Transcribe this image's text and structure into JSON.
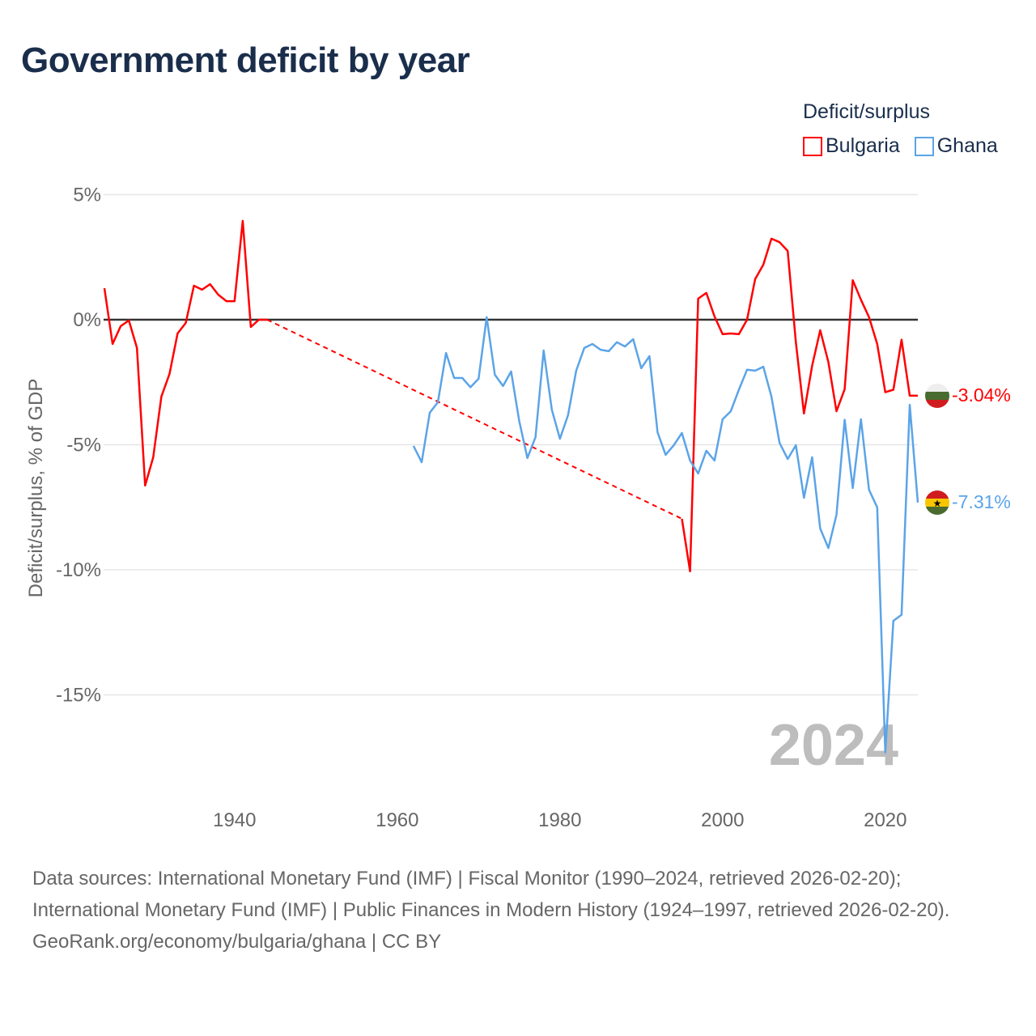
{
  "title": "Government deficit by year",
  "legend": {
    "title": "Deficit/surplus",
    "items": [
      {
        "name": "Bulgaria",
        "color": "#ff0000"
      },
      {
        "name": "Ghana",
        "color": "#5ba4e8"
      }
    ]
  },
  "year_watermark": "2024",
  "end_labels": {
    "bulgaria": "-3.04%",
    "ghana": "-7.31%"
  },
  "footer": {
    "sources": "Data sources: International Monetary Fund (IMF) | Fiscal Monitor (1990–2024, retrieved 2026-02-20); International Monetary Fund (IMF) | Public Finances in Modern History (1924–1997, retrieved 2026-02-20).",
    "credit": "GeoRank.org/economy/bulgaria/ghana | CC BY"
  },
  "chart_data": {
    "type": "line",
    "title": "Government deficit by year",
    "xlabel": "",
    "ylabel": "Deficit/surplus, % of GDP",
    "xlim": [
      1924,
      2024
    ],
    "ylim": [
      -19,
      5
    ],
    "xticks": [
      1940,
      1960,
      1980,
      2000,
      2020
    ],
    "yticks": [
      {
        "v": 5,
        "label": "5%"
      },
      {
        "v": 0,
        "label": "0%"
      },
      {
        "v": -5,
        "label": "-5%"
      },
      {
        "v": -10,
        "label": "-10%"
      },
      {
        "v": -15,
        "label": "-15%"
      }
    ],
    "grid": true,
    "legend_position": "top-right",
    "series": [
      {
        "name": "Bulgaria",
        "color": "#ff0000",
        "points": [
          [
            1924,
            1.26
          ],
          [
            1925,
            -0.97
          ],
          [
            1926,
            -0.26
          ],
          [
            1927,
            -0.03
          ],
          [
            1928,
            -1.13
          ],
          [
            1929,
            -6.63
          ],
          [
            1930,
            -5.5
          ],
          [
            1931,
            -3.07
          ],
          [
            1932,
            -2.17
          ],
          [
            1933,
            -0.55
          ],
          [
            1934,
            -0.13
          ],
          [
            1935,
            1.36
          ],
          [
            1936,
            1.2
          ],
          [
            1937,
            1.42
          ],
          [
            1938,
            1.0
          ],
          [
            1939,
            0.74
          ],
          [
            1940,
            0.74
          ],
          [
            1941,
            3.95
          ],
          [
            1942,
            -0.29
          ],
          [
            1943,
            0.0
          ],
          [
            1944,
            0.0
          ],
          [
            1995,
            -7.96
          ],
          [
            1996,
            -10.06
          ],
          [
            1997,
            0.84
          ],
          [
            1998,
            1.07
          ],
          [
            1999,
            0.13
          ],
          [
            2000,
            -0.58
          ],
          [
            2001,
            -0.55
          ],
          [
            2002,
            -0.58
          ],
          [
            2003,
            0.0
          ],
          [
            2004,
            1.62
          ],
          [
            2005,
            2.2
          ],
          [
            2006,
            3.24
          ],
          [
            2007,
            3.1
          ],
          [
            2008,
            2.75
          ],
          [
            2009,
            -0.9
          ],
          [
            2010,
            -3.75
          ],
          [
            2011,
            -1.84
          ],
          [
            2012,
            -0.42
          ],
          [
            2013,
            -1.7
          ],
          [
            2014,
            -3.66
          ],
          [
            2015,
            -2.78
          ],
          [
            2016,
            1.58
          ],
          [
            2017,
            0.8
          ],
          [
            2018,
            0.1
          ],
          [
            2019,
            -0.97
          ],
          [
            2020,
            -2.9
          ],
          [
            2021,
            -2.8
          ],
          [
            2022,
            -0.8
          ],
          [
            2023,
            -3.04
          ],
          [
            2024,
            -3.04
          ]
        ]
      },
      {
        "name": "Ghana",
        "color": "#5ba4e8",
        "points": [
          [
            1962,
            -5.05
          ],
          [
            1963,
            -5.7
          ],
          [
            1964,
            -3.72
          ],
          [
            1965,
            -3.3
          ],
          [
            1966,
            -1.33
          ],
          [
            1967,
            -2.33
          ],
          [
            1968,
            -2.33
          ],
          [
            1969,
            -2.7
          ],
          [
            1970,
            -2.36
          ],
          [
            1971,
            0.1
          ],
          [
            1972,
            -2.2
          ],
          [
            1973,
            -2.65
          ],
          [
            1974,
            -2.07
          ],
          [
            1975,
            -4.05
          ],
          [
            1976,
            -5.53
          ],
          [
            1977,
            -4.7
          ],
          [
            1978,
            -1.23
          ],
          [
            1979,
            -3.6
          ],
          [
            1980,
            -4.76
          ],
          [
            1981,
            -3.82
          ],
          [
            1982,
            -2.04
          ],
          [
            1983,
            -1.13
          ],
          [
            1984,
            -0.97
          ],
          [
            1985,
            -1.2
          ],
          [
            1986,
            -1.26
          ],
          [
            1987,
            -0.9
          ],
          [
            1988,
            -1.07
          ],
          [
            1989,
            -0.78
          ],
          [
            1990,
            -1.94
          ],
          [
            1991,
            -1.46
          ],
          [
            1992,
            -4.5
          ],
          [
            1993,
            -5.4
          ],
          [
            1994,
            -5.02
          ],
          [
            1995,
            -4.53
          ],
          [
            1996,
            -5.63
          ],
          [
            1997,
            -6.15
          ],
          [
            1998,
            -5.24
          ],
          [
            1999,
            -5.63
          ],
          [
            2000,
            -3.98
          ],
          [
            2001,
            -3.66
          ],
          [
            2002,
            -2.8
          ],
          [
            2003,
            -2.0
          ],
          [
            2004,
            -2.04
          ],
          [
            2005,
            -1.88
          ],
          [
            2006,
            -3.07
          ],
          [
            2007,
            -4.92
          ],
          [
            2008,
            -5.57
          ],
          [
            2009,
            -5.02
          ],
          [
            2010,
            -7.12
          ],
          [
            2011,
            -5.5
          ],
          [
            2012,
            -8.35
          ],
          [
            2013,
            -9.13
          ],
          [
            2014,
            -7.8
          ],
          [
            2015,
            -4.0
          ],
          [
            2016,
            -6.73
          ],
          [
            2017,
            -3.98
          ],
          [
            2018,
            -6.8
          ],
          [
            2019,
            -7.5
          ],
          [
            2020,
            -17.3
          ],
          [
            2021,
            -12.04
          ],
          [
            2022,
            -11.8
          ],
          [
            2023,
            -3.4
          ],
          [
            2024,
            -7.31
          ]
        ]
      }
    ]
  }
}
